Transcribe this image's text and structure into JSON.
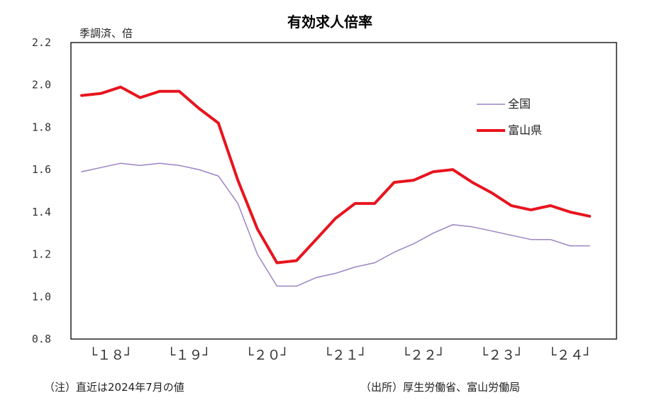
{
  "chart_data": {
    "type": "line",
    "title": "有効求人倍率",
    "ylabel": "季調済、倍",
    "ylim": [
      0.8,
      2.2
    ],
    "yticks": [
      "2.2",
      "2.0",
      "1.8",
      "1.6",
      "1.4",
      "1.2",
      "1.0",
      "0.8"
    ],
    "ytick_values": [
      2.2,
      2.0,
      1.8,
      1.6,
      1.4,
      1.2,
      1.0,
      0.8
    ],
    "year_labels": [
      {
        "text": "└１８┘",
        "from": 0,
        "to": 3
      },
      {
        "text": "└１９┘",
        "from": 4,
        "to": 7
      },
      {
        "text": "└２０┘",
        "from": 8,
        "to": 11
      },
      {
        "text": "└２１┘",
        "from": 12,
        "to": 15
      },
      {
        "text": "└２２┘",
        "from": 16,
        "to": 19
      },
      {
        "text": "└２３┘",
        "from": 20,
        "to": 23
      },
      {
        "text": "└２４┘",
        "from": 24,
        "to": 26
      }
    ],
    "points_count": 27,
    "series": [
      {
        "name": "全国",
        "color": "#9b83c4",
        "values": [
          1.59,
          1.61,
          1.63,
          1.62,
          1.63,
          1.62,
          1.6,
          1.57,
          1.44,
          1.2,
          1.05,
          1.05,
          1.09,
          1.11,
          1.14,
          1.16,
          1.21,
          1.25,
          1.3,
          1.34,
          1.33,
          1.31,
          1.29,
          1.27,
          1.27,
          1.24,
          1.24
        ]
      },
      {
        "name": "富山県",
        "color": "#e8141e",
        "values": [
          1.95,
          1.96,
          1.99,
          1.94,
          1.97,
          1.97,
          1.89,
          1.82,
          1.55,
          1.32,
          1.16,
          1.17,
          1.27,
          1.37,
          1.44,
          1.44,
          1.54,
          1.55,
          1.59,
          1.6,
          1.54,
          1.49,
          1.43,
          1.41,
          1.43,
          1.4,
          1.38
        ]
      }
    ],
    "legend_position": "right"
  },
  "notes": {
    "left": "（注）直近は2024年7月の値",
    "right": "（出所）厚生労働省、富山労働局"
  }
}
